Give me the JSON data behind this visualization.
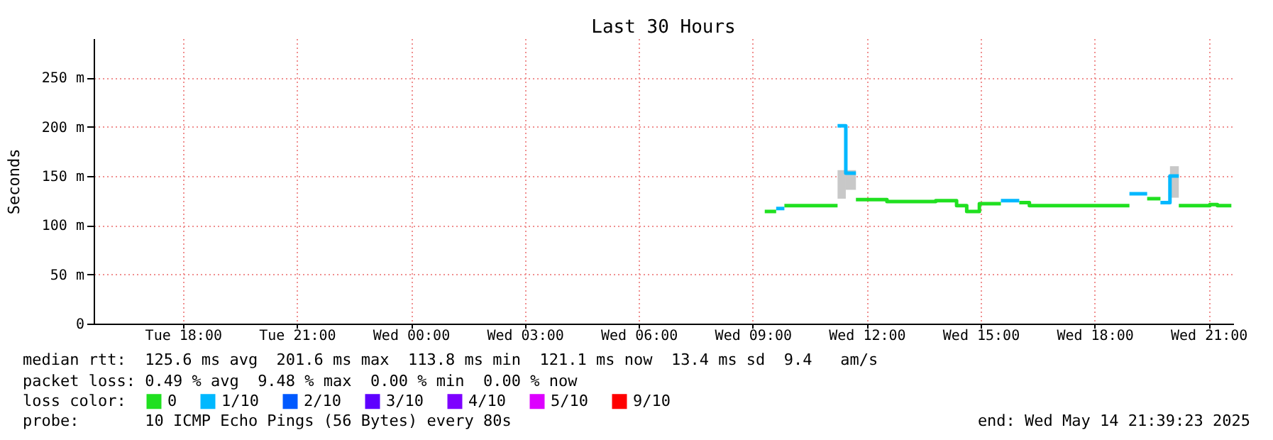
{
  "chart_data": {
    "type": "step",
    "title": "Last 30 Hours",
    "ylabel": "Seconds",
    "legend_title": "loss color:",
    "legend": "bottom left",
    "grid": true,
    "line_style": "solid",
    "xlim": [
      "2025-05-13T15:39",
      "2025-05-14T21:39"
    ],
    "xticks": [
      {
        "value": "2025-05-13T18:00",
        "label": "Tue 18:00"
      },
      {
        "value": "2025-05-13T21:00",
        "label": "Tue 21:00"
      },
      {
        "value": "2025-05-14T00:00",
        "label": "Wed 00:00"
      },
      {
        "value": "2025-05-14T03:00",
        "label": "Wed 03:00"
      },
      {
        "value": "2025-05-14T06:00",
        "label": "Wed 06:00"
      },
      {
        "value": "2025-05-14T09:00",
        "label": "Wed 09:00"
      },
      {
        "value": "2025-05-14T12:00",
        "label": "Wed 12:00"
      },
      {
        "value": "2025-05-14T15:00",
        "label": "Wed 15:00"
      },
      {
        "value": "2025-05-14T18:00",
        "label": "Wed 18:00"
      },
      {
        "value": "2025-05-14T21:00",
        "label": "Wed 21:00"
      }
    ],
    "ylim": [
      0,
      290
    ],
    "yticks": [
      0,
      {
        "value": 50,
        "label": "50 m"
      },
      {
        "value": 100,
        "label": "100 m"
      },
      {
        "value": 150,
        "label": "150 m"
      },
      {
        "value": 200,
        "label": "200 m"
      },
      {
        "value": 250,
        "label": "250 m"
      }
    ],
    "series": [
      {
        "name": "0",
        "color": "#20e020",
        "x": [
          "2025-05-14T09:19",
          "2025-05-14T09:37"
        ],
        "values": [
          114,
          114
        ]
      },
      {
        "color": "#20e020",
        "x": [
          "2025-05-14T09:50",
          "2025-05-14T11:14"
        ],
        "values": [
          120,
          120
        ]
      },
      {
        "color": "#20e020",
        "x": [
          "2025-05-14T11:43",
          "2025-05-14T12:32",
          "2025-05-14T13:49",
          "2025-05-14T14:22",
          "2025-05-14T14:38",
          "2025-05-14T14:58",
          "2025-05-14T15:32"
        ],
        "values": [
          126,
          124,
          125,
          120,
          114,
          122,
          122
        ]
      },
      {
        "color": "#20e020",
        "x": [
          "2025-05-14T16:01",
          "2025-05-14T16:17",
          "2025-05-14T16:32",
          "2025-05-14T18:55"
        ],
        "values": [
          123,
          120,
          120,
          120
        ]
      },
      {
        "color": "#20e020",
        "x": [
          "2025-05-14T19:23",
          "2025-05-14T19:44"
        ],
        "values": [
          127,
          127
        ]
      },
      {
        "color": "#20e020",
        "x": [
          "2025-05-14T20:13",
          "2025-05-14T21:02",
          "2025-05-14T21:14",
          "2025-05-14T21:36"
        ],
        "values": [
          120,
          121,
          120,
          120
        ]
      },
      {
        "name": "1/10",
        "color": "#00b8ff",
        "x": [
          "2025-05-14T09:37",
          "2025-05-14T09:50"
        ],
        "values": [
          117,
          117
        ]
      },
      {
        "color": "#00b8ff",
        "x": [
          "2025-05-14T11:14",
          "2025-05-14T11:27",
          "2025-05-14T11:43"
        ],
        "values": [
          201,
          153,
          153
        ],
        "lower": [
          127,
          136,
          136
        ],
        "upper": [
          156,
          156,
          156
        ]
      },
      {
        "color": "#00b8ff",
        "x": [
          "2025-05-14T15:32",
          "2025-05-14T16:01"
        ],
        "values": [
          125,
          125
        ]
      },
      {
        "color": "#00b8ff",
        "x": [
          "2025-05-14T18:55",
          "2025-05-14T19:23"
        ],
        "values": [
          132,
          132
        ]
      },
      {
        "color": "#00b8ff",
        "x": [
          "2025-05-14T19:44",
          "2025-05-14T19:59",
          "2025-05-14T20:13"
        ],
        "values": [
          123,
          150,
          150
        ],
        "lower": [
          null,
          128,
          128
        ],
        "upper": [
          null,
          160,
          160
        ]
      },
      {
        "name": "2/10",
        "color": "#0059ff"
      },
      {
        "name": "3/10",
        "color": "#5e00ff"
      },
      {
        "name": "4/10",
        "color": "#7e00ff"
      },
      {
        "name": "5/10",
        "color": "#dd00ff"
      },
      {
        "name": "9/10",
        "color": "#ff0000"
      }
    ],
    "annotations": [
      "median rtt:  125.6 ms avg  201.6 ms max  113.8 ms min  121.1 ms now  13.4 ms sd  9.4   am/s",
      "packet loss: 0.49 % avg  9.48 % max  0.00 % min  0.00 % now",
      "probe:       10 ICMP Echo Pings (56 Bytes) every 80s",
      "end: Wed May 14 21:39:23 2025"
    ]
  }
}
